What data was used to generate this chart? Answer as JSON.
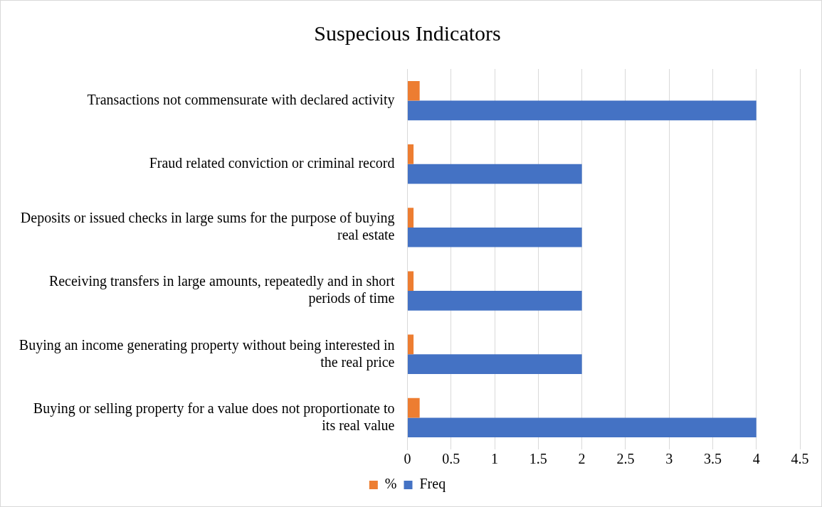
{
  "chart_data": {
    "type": "bar",
    "orientation": "horizontal",
    "title": "Suspecious Indicators",
    "categories": [
      "Transactions not commensurate with declared activity",
      "Fraud related conviction or criminal record",
      "Deposits or issued checks in large sums for the purpose of buying real estate",
      "Receiving transfers in large amounts, repeatedly and in short periods of time",
      "Buying an income generating property without being interested in the real price",
      "Buying or selling property for a value does not proportionate to its real value"
    ],
    "series": [
      {
        "name": "%",
        "color": "#ed7d31",
        "values": [
          0.14,
          0.07,
          0.07,
          0.07,
          0.07,
          0.14
        ]
      },
      {
        "name": "Freq",
        "color": "#4472c4",
        "values": [
          4,
          2,
          2,
          2,
          2,
          4
        ]
      }
    ],
    "xlim": [
      0,
      4.5
    ],
    "xticks": [
      0,
      0.5,
      1,
      1.5,
      2,
      2.5,
      3,
      3.5,
      4,
      4.5
    ],
    "grid": "x",
    "legend": "bottom"
  }
}
